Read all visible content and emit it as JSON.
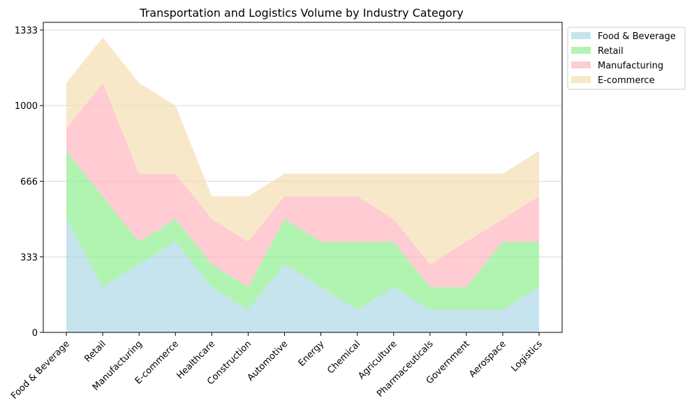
{
  "chart_data": {
    "type": "area",
    "stacked": true,
    "title": "Transportation and Logistics Volume by Industry Category",
    "xlabel": "",
    "ylabel": "",
    "categories": [
      "Food & Beverage",
      "Retail",
      "Manufacturing",
      "E-commerce",
      "Healthcare",
      "Construction",
      "Automotive",
      "Energy",
      "Chemical",
      "Agriculture",
      "Pharmaceuticals",
      "Government",
      "Aerospace",
      "Logistics"
    ],
    "series": [
      {
        "name": "Food & Beverage",
        "color": "#add8e6",
        "values": [
          500,
          200,
          300,
          400,
          200,
          100,
          300,
          200,
          100,
          200,
          100,
          100,
          100,
          200
        ]
      },
      {
        "name": "Retail",
        "color": "#90ee90",
        "values": [
          300,
          400,
          100,
          100,
          100,
          100,
          200,
          200,
          300,
          200,
          100,
          100,
          300,
          200
        ]
      },
      {
        "name": "Manufacturing",
        "color": "#ffb6c1",
        "values": [
          100,
          500,
          300,
          200,
          200,
          200,
          100,
          200,
          200,
          100,
          100,
          200,
          100,
          200
        ]
      },
      {
        "name": "E-commerce",
        "color": "#f5deb3",
        "values": [
          200,
          200,
          400,
          300,
          100,
          200,
          100,
          100,
          100,
          200,
          400,
          300,
          200,
          200
        ]
      }
    ],
    "yticks": [
      0,
      333,
      666,
      1000,
      1333
    ],
    "ylim": [
      0,
      1333
    ],
    "grid": "horizontal",
    "legend_position": "outside-top-right",
    "alpha": 0.7
  }
}
